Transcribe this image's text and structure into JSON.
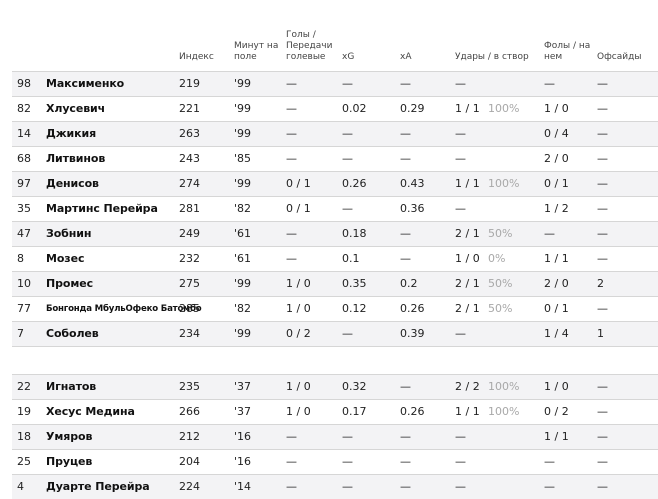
{
  "headers": {
    "index": "Индекс",
    "minutes": "Минут на\nполе",
    "goals_assists": "Голы /\nПередачи\nголевые",
    "xg": "xG",
    "xa": "xA",
    "shots": "Удары / в створ",
    "fouls": "Фолы / на\nнем",
    "offsides": "Офсайды"
  },
  "group1": [
    {
      "num": "98",
      "name": "Максименко",
      "index": "219",
      "minutes": "'99",
      "ga": "—",
      "xg": "—",
      "xa": "—",
      "shots": "—",
      "shots_pct": "",
      "fouls": "—",
      "offsides": "—"
    },
    {
      "num": "82",
      "name": "Хлусевич",
      "index": "221",
      "minutes": "'99",
      "ga": "—",
      "xg": "0.02",
      "xa": "0.29",
      "shots": "1 / 1",
      "shots_pct": "100%",
      "fouls": "1 / 0",
      "offsides": "—"
    },
    {
      "num": "14",
      "name": "Джикия",
      "index": "263",
      "minutes": "'99",
      "ga": "—",
      "xg": "—",
      "xa": "—",
      "shots": "—",
      "shots_pct": "",
      "fouls": "0 / 4",
      "offsides": "—"
    },
    {
      "num": "68",
      "name": "Литвинов",
      "index": "243",
      "minutes": "'85",
      "ga": "—",
      "xg": "—",
      "xa": "—",
      "shots": "—",
      "shots_pct": "",
      "fouls": "2 / 0",
      "offsides": "—"
    },
    {
      "num": "97",
      "name": "Денисов",
      "index": "274",
      "minutes": "'99",
      "ga": "0 / 1",
      "xg": "0.26",
      "xa": "0.43",
      "shots": "1 / 1",
      "shots_pct": "100%",
      "fouls": "0 / 1",
      "offsides": "—"
    },
    {
      "num": "35",
      "name": "Мартинс Перейра",
      "index": "281",
      "minutes": "'82",
      "ga": "0 / 1",
      "xg": "—",
      "xa": "0.36",
      "shots": "—",
      "shots_pct": "",
      "fouls": "1 / 2",
      "offsides": "—"
    },
    {
      "num": "47",
      "name": "Зобнин",
      "index": "249",
      "minutes": "'61",
      "ga": "—",
      "xg": "0.18",
      "xa": "—",
      "shots": "2 / 1",
      "shots_pct": "50%",
      "fouls": "—",
      "offsides": "—"
    },
    {
      "num": "8",
      "name": "Мозес",
      "index": "232",
      "minutes": "'61",
      "ga": "—",
      "xg": "0.1",
      "xa": "—",
      "shots": "1 / 0",
      "shots_pct": "0%",
      "fouls": "1 / 1",
      "offsides": "—"
    },
    {
      "num": "10",
      "name": "Промес",
      "index": "275",
      "minutes": "'99",
      "ga": "1 / 0",
      "xg": "0.35",
      "xa": "0.2",
      "shots": "2 / 1",
      "shots_pct": "50%",
      "fouls": "2 / 0",
      "offsides": "2"
    },
    {
      "num": "77",
      "name": "Бонгонда МбульОфеко Батомбо",
      "index": "285",
      "minutes": "'82",
      "ga": "1 / 0",
      "xg": "0.12",
      "xa": "0.26",
      "shots": "2 / 1",
      "shots_pct": "50%",
      "fouls": "0 / 1",
      "offsides": "—"
    },
    {
      "num": "7",
      "name": "Соболев",
      "index": "234",
      "minutes": "'99",
      "ga": "0 / 2",
      "xg": "—",
      "xa": "0.39",
      "shots": "—",
      "shots_pct": "",
      "fouls": "1 / 4",
      "offsides": "1"
    }
  ],
  "group2": [
    {
      "num": "22",
      "name": "Игнатов",
      "index": "235",
      "minutes": "'37",
      "ga": "1 / 0",
      "xg": "0.32",
      "xa": "—",
      "shots": "2 / 2",
      "shots_pct": "100%",
      "fouls": "1 / 0",
      "offsides": "—"
    },
    {
      "num": "19",
      "name": "Хесус Медина",
      "index": "266",
      "minutes": "'37",
      "ga": "1 / 0",
      "xg": "0.17",
      "xa": "0.26",
      "shots": "1 / 1",
      "shots_pct": "100%",
      "fouls": "0 / 2",
      "offsides": "—"
    },
    {
      "num": "18",
      "name": "Умяров",
      "index": "212",
      "minutes": "'16",
      "ga": "—",
      "xg": "—",
      "xa": "—",
      "shots": "—",
      "shots_pct": "",
      "fouls": "1 / 1",
      "offsides": "—"
    },
    {
      "num": "25",
      "name": "Пруцев",
      "index": "204",
      "minutes": "'16",
      "ga": "—",
      "xg": "—",
      "xa": "—",
      "shots": "—",
      "shots_pct": "",
      "fouls": "—",
      "offsides": "—"
    },
    {
      "num": "4",
      "name": "Дуарте Перейра",
      "index": "224",
      "minutes": "'14",
      "ga": "—",
      "xg": "—",
      "xa": "—",
      "shots": "—",
      "shots_pct": "",
      "fouls": "—",
      "offsides": "—"
    }
  ]
}
